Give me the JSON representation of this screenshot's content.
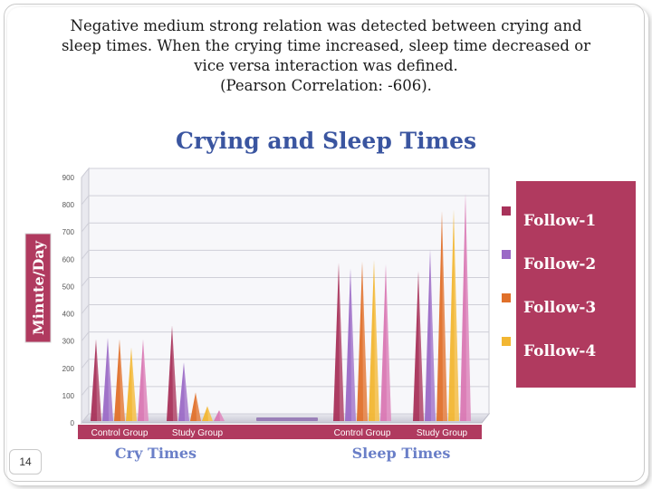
{
  "slide": {
    "text_lines": [
      "Negative medium strong relation was detected between crying and",
      "sleep times. When the crying time increased, sleep time decreased or",
      "vice versa interaction was defined.",
      "(Pearson Correlation: -606)."
    ],
    "page_number": "14"
  },
  "colors": {
    "panel": "#b03a5f",
    "title": "#3a55a0",
    "group_label": "#6a7fc8"
  },
  "chart_data": {
    "type": "bar",
    "title": "Crying and Sleep Times",
    "ylabel": "Minute/Day",
    "ylim": [
      0,
      900
    ],
    "yticks": [
      0,
      100,
      200,
      300,
      400,
      500,
      600,
      700,
      800,
      900
    ],
    "grid": true,
    "legend_position": "right",
    "sections": [
      {
        "label": "Cry Times",
        "categories": [
          "Control Group",
          "Study Group"
        ]
      },
      {
        "label": "Sleep Times",
        "categories": [
          "Control Group",
          "Study Group"
        ]
      }
    ],
    "series": [
      {
        "name": "Follow-1",
        "color": "#a8325a",
        "values": [
          290,
          340,
          570,
          540
        ]
      },
      {
        "name": "Follow-2",
        "color": "#9b6ac6",
        "values": [
          295,
          205,
          550,
          620
        ]
      },
      {
        "name": "Follow-3",
        "color": "#e0702a",
        "values": [
          290,
          95,
          575,
          760
        ]
      },
      {
        "name": "Follow-4",
        "color": "#f2b632",
        "values": [
          260,
          45,
          580,
          765
        ]
      },
      {
        "name": "",
        "color": "#d977b3",
        "values": [
          290,
          30,
          565,
          825
        ]
      }
    ]
  }
}
